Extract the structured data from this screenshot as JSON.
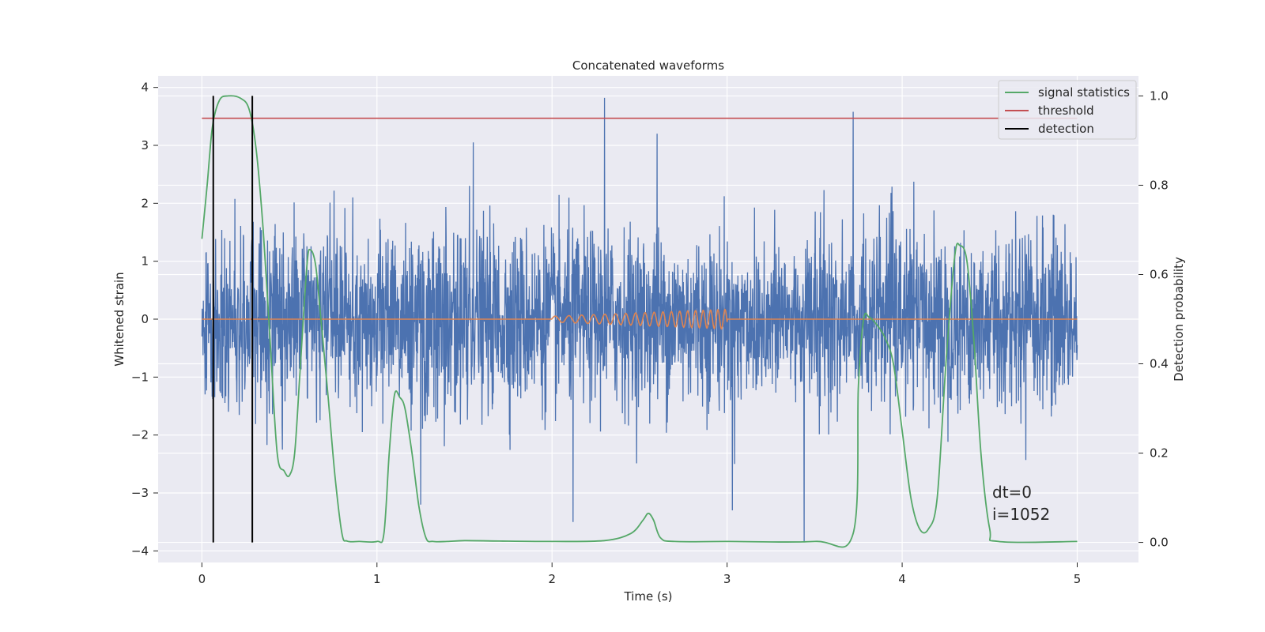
{
  "chart_data": {
    "type": "line",
    "title": "Concatenated waveforms",
    "xlabel": "Time (s)",
    "ylabel": "Whitened strain",
    "y2label": "Detection probability",
    "xlim": [
      -0.25,
      5.35
    ],
    "ylim": [
      -4.2,
      4.2
    ],
    "y2lim": [
      -0.045,
      1.045
    ],
    "xticks": [
      0,
      1,
      2,
      3,
      4,
      5
    ],
    "yticks": [
      -4,
      -3,
      -2,
      -1,
      0,
      1,
      2,
      3,
      4
    ],
    "y2ticks": [
      0.0,
      0.2,
      0.4,
      0.6,
      0.8,
      1.0
    ],
    "y2ticklabels": [
      "0.0",
      "0.2",
      "0.4",
      "0.6",
      "0.8",
      "1.0"
    ],
    "grid": true,
    "legend_position": "top-right",
    "legend": [
      "signal statistics",
      "threshold",
      "detection"
    ],
    "colors": {
      "background": "#eaeaf2",
      "noise": "#4c72b0",
      "injection": "#dd8452",
      "statistic": "#55a868",
      "threshold": "#c44e52",
      "detection": "#000000",
      "grid": "#ffffff"
    },
    "noise": {
      "x_range": [
        0,
        5
      ],
      "sigma": 0.75,
      "typical_max": 2.5,
      "typical_min": -2.5,
      "spikes": [
        {
          "x": 2.3,
          "y": 3.82
        },
        {
          "x": 3.72,
          "y": 3.58
        },
        {
          "x": 3.44,
          "y": -3.85
        },
        {
          "x": 1.55,
          "y": 3.05
        },
        {
          "x": 2.6,
          "y": 3.2
        },
        {
          "x": 1.25,
          "y": -3.2
        },
        {
          "x": 2.12,
          "y": -3.5
        },
        {
          "x": 3.03,
          "y": -3.3
        }
      ]
    },
    "injection": {
      "x_start": 2.0,
      "x_end": 3.0,
      "amplitude_start": 0.05,
      "amplitude_end": 0.17,
      "frequency_start": 12,
      "frequency_end": 25
    },
    "signal_statistics": {
      "axis": "y2",
      "x": [
        0.0,
        0.03,
        0.06,
        0.1,
        0.15,
        0.22,
        0.27,
        0.31,
        0.35,
        0.39,
        0.43,
        0.47,
        0.5,
        0.53,
        0.56,
        0.6,
        0.62,
        0.65,
        0.68,
        0.72,
        0.76,
        0.8,
        0.83,
        0.9,
        1.0,
        1.04,
        1.07,
        1.1,
        1.13,
        1.16,
        1.2,
        1.24,
        1.28,
        1.32,
        1.4,
        1.5,
        1.7,
        2.0,
        2.3,
        2.45,
        2.52,
        2.55,
        2.58,
        2.62,
        2.7,
        3.0,
        3.5,
        3.72,
        3.75,
        3.78,
        3.81,
        3.85,
        3.9,
        3.95,
        4.0,
        4.05,
        4.1,
        4.15,
        4.2,
        4.25,
        4.3,
        4.33,
        4.37,
        4.41,
        4.45,
        4.5,
        4.55,
        5.0
      ],
      "y": [
        0.68,
        0.8,
        0.93,
        0.99,
        1.0,
        0.995,
        0.97,
        0.88,
        0.7,
        0.45,
        0.2,
        0.16,
        0.15,
        0.2,
        0.38,
        0.62,
        0.655,
        0.62,
        0.5,
        0.33,
        0.15,
        0.02,
        0.003,
        0.002,
        0.002,
        0.02,
        0.2,
        0.33,
        0.325,
        0.3,
        0.2,
        0.08,
        0.01,
        0.002,
        0.002,
        0.004,
        0.003,
        0.002,
        0.004,
        0.02,
        0.05,
        0.065,
        0.05,
        0.01,
        0.002,
        0.002,
        0.002,
        0.02,
        0.35,
        0.5,
        0.505,
        0.49,
        0.46,
        0.4,
        0.25,
        0.1,
        0.03,
        0.03,
        0.1,
        0.4,
        0.64,
        0.665,
        0.63,
        0.45,
        0.2,
        0.03,
        0.002,
        0.002
      ]
    },
    "threshold": {
      "axis": "y2",
      "value": 0.95,
      "x_range": [
        0,
        5
      ]
    },
    "detections": {
      "x": [
        0.065,
        0.288
      ],
      "y_range": [
        0.0,
        1.0
      ],
      "axis": "y2"
    },
    "annotations": [
      "dt=0",
      "i=1052"
    ]
  }
}
